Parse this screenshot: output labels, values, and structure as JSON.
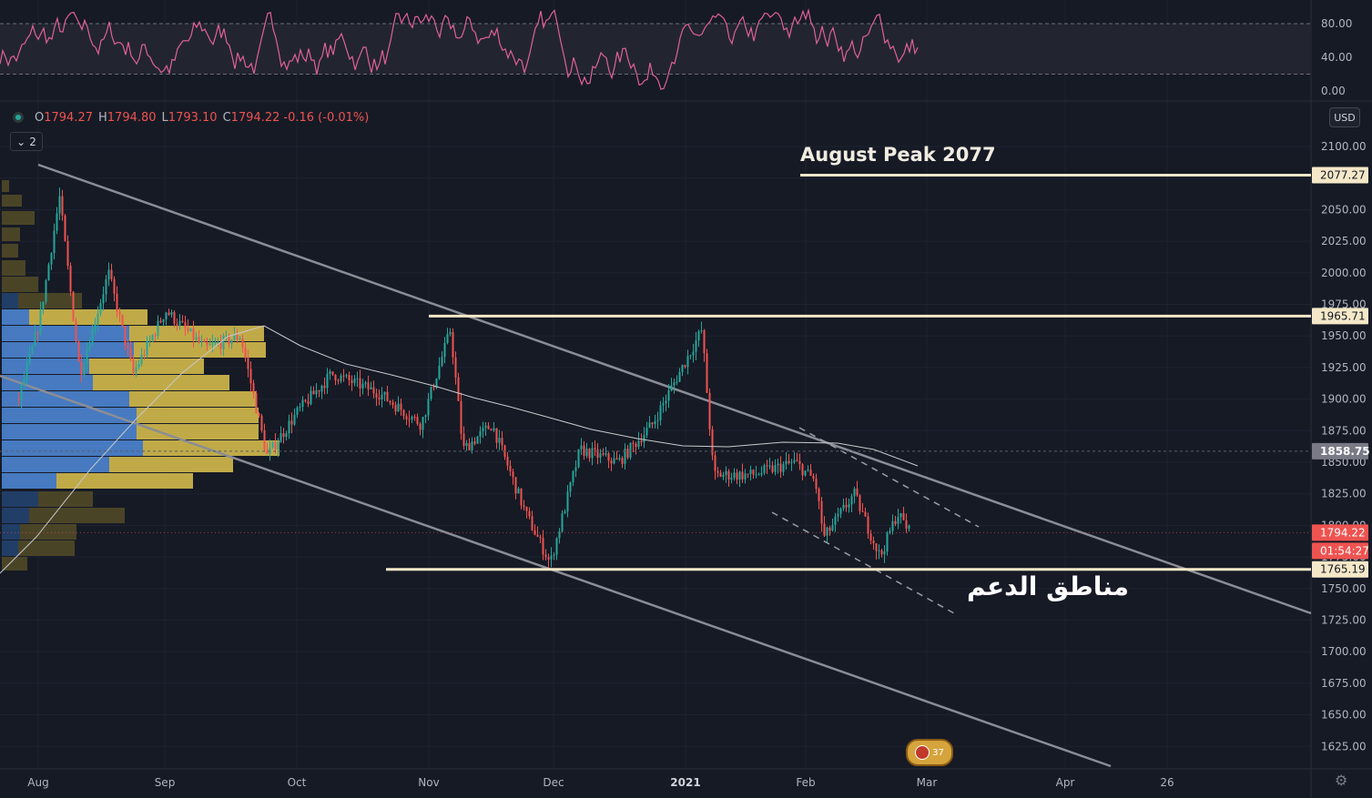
{
  "ohlc": {
    "o_label": "O",
    "o": "1794.27",
    "h_label": "H",
    "h": "1794.80",
    "l_label": "L",
    "l": "1793.10",
    "c_label": "C",
    "c": "1794.22",
    "change": "-0.16 (-0.01%)"
  },
  "indicator_count": "2",
  "currency": "USD",
  "price_axis": {
    "ticks": [
      "2100.00",
      "2075.00",
      "2050.00",
      "2025.00",
      "2000.00",
      "1975.00",
      "1950.00",
      "1925.00",
      "1900.00",
      "1875.00",
      "1850.00",
      "1825.00",
      "1800.00",
      "1775.00",
      "1750.00",
      "1725.00",
      "1700.00",
      "1675.00",
      "1650.00",
      "1625.00"
    ],
    "badges": [
      {
        "value": "2077.27",
        "style": "light"
      },
      {
        "value": "1965.71",
        "style": "light"
      },
      {
        "value": "1858.75",
        "style": "grey"
      },
      {
        "value": "1794.22",
        "style": "red"
      },
      {
        "value": "01:54:27",
        "style": "red-time",
        "anchor": "1794.22"
      },
      {
        "value": "1765.19",
        "style": "light"
      }
    ]
  },
  "rsi_axis": {
    "ticks": [
      "80.00",
      "40.00",
      "0.00"
    ]
  },
  "time_axis": {
    "labels": [
      "Aug",
      "Sep",
      "Oct",
      "Nov",
      "Dec",
      "2021",
      "Feb",
      "Mar",
      "Apr",
      "26"
    ]
  },
  "annotations": {
    "august_peak": "August Peak 2077",
    "support_zones": "مناطق الدعم"
  },
  "event_badge": "37",
  "colors": {
    "background": "#161a25",
    "up": "#26a69a",
    "down": "#ef5350",
    "rsi": "#e0609a",
    "level": "#f5e8c8",
    "channel": "#8a8d96",
    "vp_blue": "#4a7fc8",
    "vp_yellow": "#c9b24a"
  },
  "chart_data": {
    "type": "candlestick",
    "instrument_price_scale": "USD",
    "y_range": [
      1610,
      2115
    ],
    "last": {
      "open": 1794.27,
      "high": 1794.8,
      "low": 1793.1,
      "close": 1794.22
    },
    "horizontal_levels": [
      2077.27,
      1965.71,
      1765.19
    ],
    "current_price": 1794.22,
    "approx_path": [
      {
        "t": "Jul 27",
        "v": 1900
      },
      {
        "t": "Aug 1",
        "v": 1960
      },
      {
        "t": "Aug 6",
        "v": 2060
      },
      {
        "t": "Aug 11",
        "v": 1920
      },
      {
        "t": "Aug 18",
        "v": 2000
      },
      {
        "t": "Aug 24",
        "v": 1920
      },
      {
        "t": "Sep 1",
        "v": 1970
      },
      {
        "t": "Sep 10",
        "v": 1940
      },
      {
        "t": "Sep 18",
        "v": 1950
      },
      {
        "t": "Sep 24",
        "v": 1855
      },
      {
        "t": "Oct 1",
        "v": 1890
      },
      {
        "t": "Oct 9",
        "v": 1920
      },
      {
        "t": "Oct 20",
        "v": 1905
      },
      {
        "t": "Oct 30",
        "v": 1880
      },
      {
        "t": "Nov 6",
        "v": 1955
      },
      {
        "t": "Nov 9",
        "v": 1860
      },
      {
        "t": "Nov 16",
        "v": 1880
      },
      {
        "t": "Nov 24",
        "v": 1810
      },
      {
        "t": "Nov 30",
        "v": 1770
      },
      {
        "t": "Dec 7",
        "v": 1860
      },
      {
        "t": "Dec 16",
        "v": 1850
      },
      {
        "t": "Dec 24",
        "v": 1880
      },
      {
        "t": "Jan 5",
        "v": 1955
      },
      {
        "t": "Jan 8",
        "v": 1840
      },
      {
        "t": "Jan 18",
        "v": 1840
      },
      {
        "t": "Jan 29",
        "v": 1850
      },
      {
        "t": "Feb 3",
        "v": 1835
      },
      {
        "t": "Feb 5",
        "v": 1790
      },
      {
        "t": "Feb 12",
        "v": 1825
      },
      {
        "t": "Feb 18",
        "v": 1775
      },
      {
        "t": "Feb 22",
        "v": 1810
      },
      {
        "t": "Feb 25",
        "v": 1794
      }
    ],
    "rsi_levels": [
      80,
      20
    ],
    "rsi_range": [
      0,
      100
    ]
  }
}
